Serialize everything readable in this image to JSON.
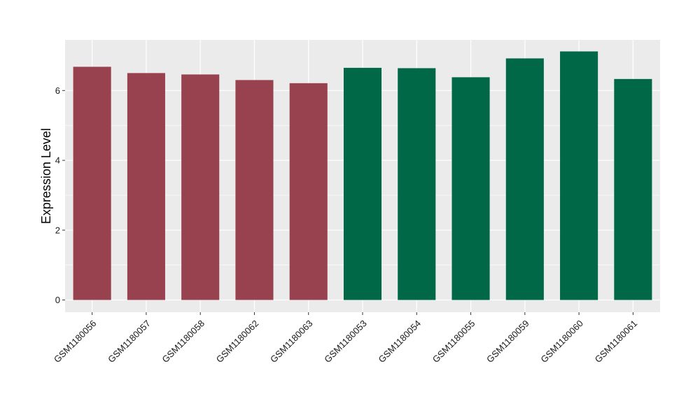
{
  "chart_data": {
    "type": "bar",
    "categories": [
      "GSM1180056",
      "GSM1180057",
      "GSM1180058",
      "GSM1180062",
      "GSM1180063",
      "GSM1180053",
      "GSM1180054",
      "GSM1180055",
      "GSM1180059",
      "GSM1180060",
      "GSM1180061"
    ],
    "values": [
      6.68,
      6.5,
      6.46,
      6.3,
      6.21,
      6.65,
      6.64,
      6.38,
      6.92,
      7.12,
      6.33
    ],
    "bar_colors": [
      "#99424f",
      "#99424f",
      "#99424f",
      "#99424f",
      "#99424f",
      "#006847",
      "#006847",
      "#006847",
      "#006847",
      "#006847",
      "#006847"
    ],
    "title": "",
    "xlabel": "",
    "ylabel": "Expression Level",
    "ylim": [
      -0.35,
      7.45
    ],
    "yticks": [
      0,
      2,
      4,
      6
    ],
    "grid": true,
    "panel_background": "#ebebeb",
    "grid_color": "#ffffff"
  }
}
